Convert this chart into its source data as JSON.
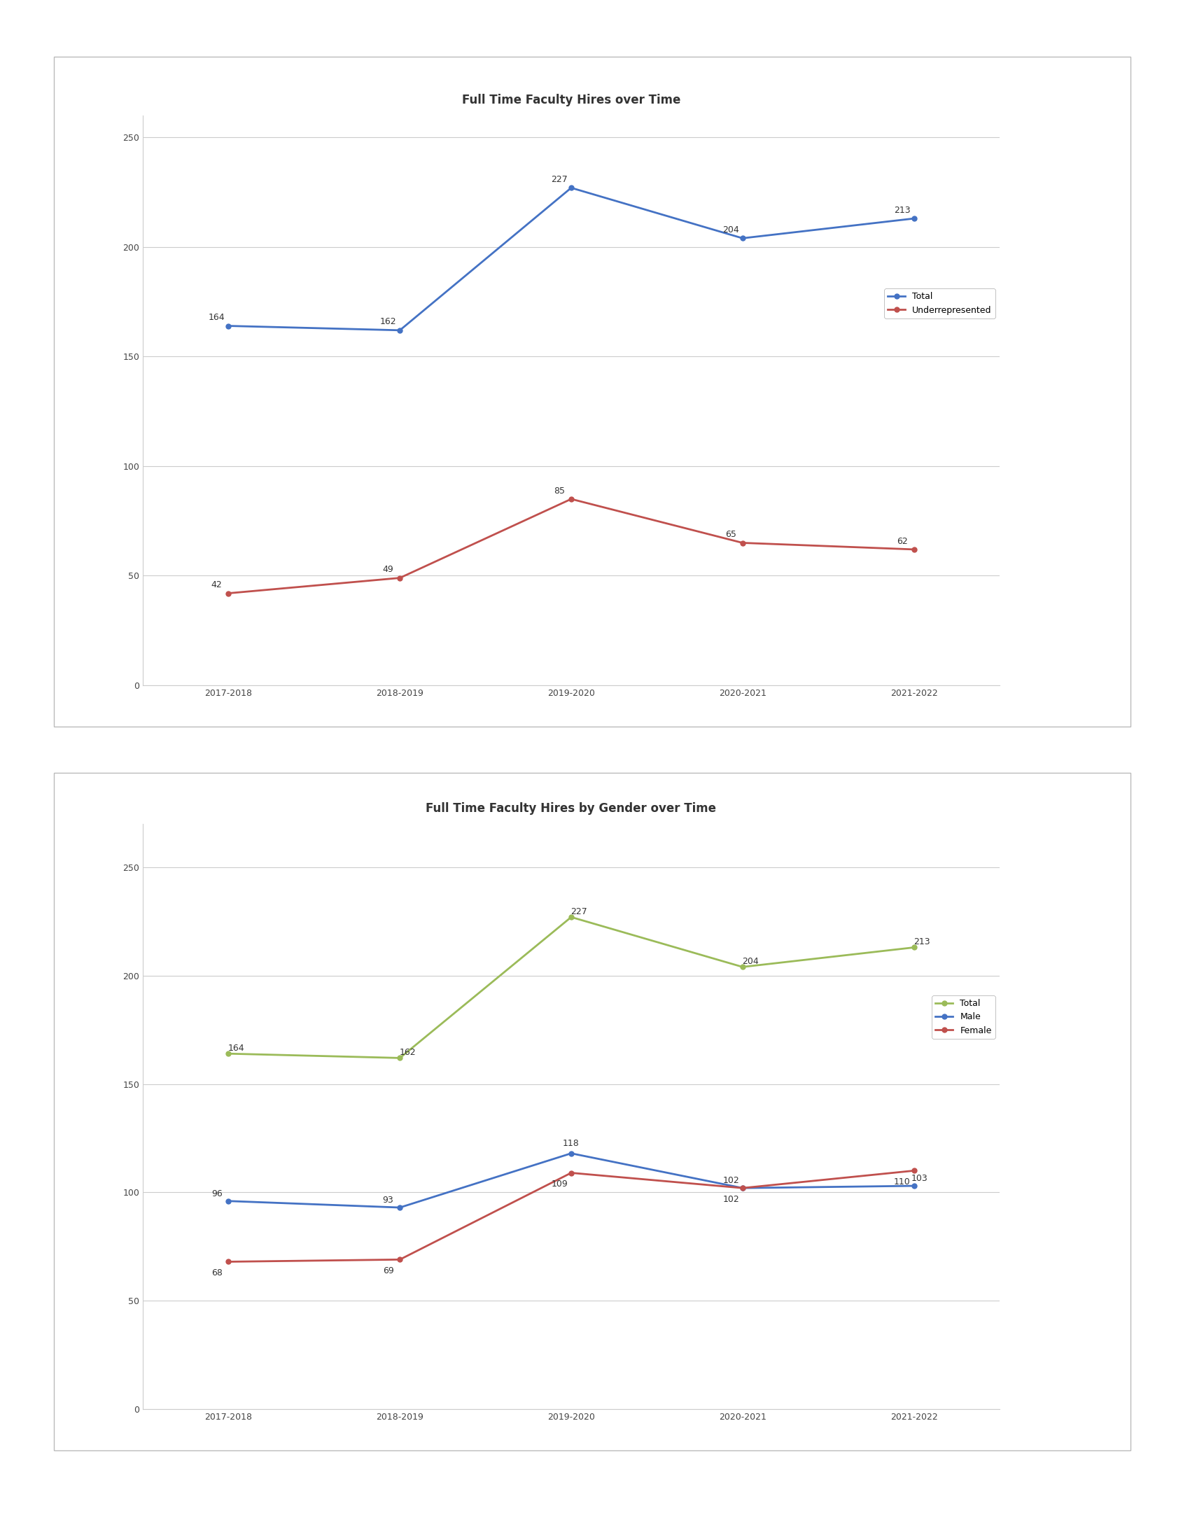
{
  "chart1": {
    "title": "Full Time Faculty Hires over Time",
    "years": [
      "2017-2018",
      "2018-2019",
      "2019-2020",
      "2020-2021",
      "2021-2022"
    ],
    "total": [
      164,
      162,
      227,
      204,
      213
    ],
    "underrepresented": [
      42,
      49,
      85,
      65,
      62
    ],
    "total_color": "#4472C4",
    "under_color": "#C0504D",
    "legend_total": "Total",
    "legend_under": "Underrepresented",
    "ylim": [
      0,
      260
    ],
    "yticks": [
      0,
      50,
      100,
      150,
      200,
      250
    ]
  },
  "chart2": {
    "title": "Full Time Faculty Hires by Gender over Time",
    "years": [
      "2017-2018",
      "2018-2019",
      "2019-2020",
      "2020-2021",
      "2021-2022"
    ],
    "male": [
      96,
      93,
      118,
      102,
      103
    ],
    "female": [
      68,
      69,
      109,
      102,
      110
    ],
    "total": [
      164,
      162,
      227,
      204,
      213
    ],
    "male_color": "#4472C4",
    "female_color": "#C0504D",
    "total_color": "#9BBB59",
    "legend_male": "Male",
    "legend_female": "Female",
    "legend_total": "Total",
    "ylim": [
      0,
      270
    ],
    "yticks": [
      0,
      50,
      100,
      150,
      200,
      250
    ]
  },
  "figure_bg": "#ffffff",
  "plot_bg": "#ffffff",
  "title_fontsize": 12,
  "tick_fontsize": 9,
  "legend_fontsize": 9,
  "annotation_fontsize": 9,
  "line_width": 2.0,
  "marker": "o",
  "marker_size": 5
}
